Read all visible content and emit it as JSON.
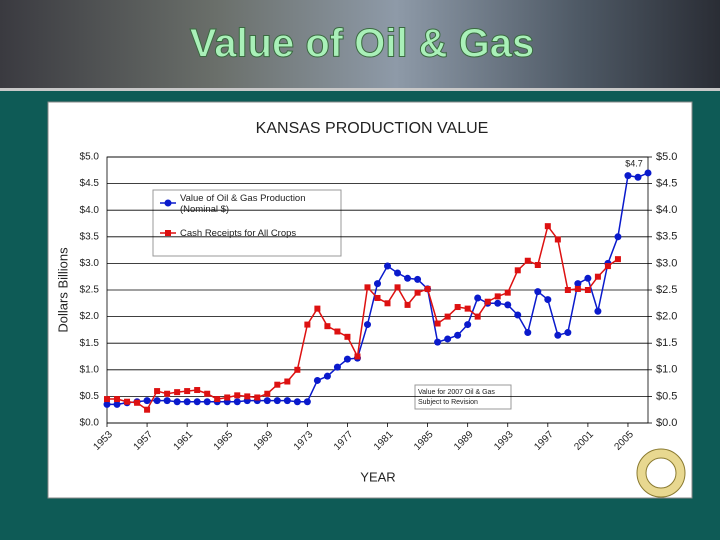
{
  "slide": {
    "title": "Value of Oil & Gas"
  },
  "chart_data": {
    "type": "line",
    "title": "KANSAS PRODUCTION VALUE",
    "y_label": "Dollars Billions",
    "x_label": "YEAR",
    "x": [
      1953,
      1954,
      1955,
      1956,
      1957,
      1958,
      1959,
      1960,
      1961,
      1962,
      1963,
      1964,
      1965,
      1966,
      1967,
      1968,
      1969,
      1970,
      1971,
      1972,
      1973,
      1974,
      1975,
      1976,
      1977,
      1978,
      1979,
      1980,
      1981,
      1982,
      1983,
      1984,
      1985,
      1986,
      1987,
      1988,
      1989,
      1990,
      1991,
      1992,
      1993,
      1994,
      1995,
      1996,
      1997,
      1998,
      1999,
      2000,
      2001,
      2002,
      2003,
      2004,
      2005,
      2006,
      2007
    ],
    "series": [
      {
        "name": "Value of Oil & Gas Production (Nominal $)",
        "color": "#0a1acc",
        "marker": "circle",
        "values": [
          0.35,
          0.35,
          0.38,
          0.4,
          0.42,
          0.42,
          0.42,
          0.4,
          0.4,
          0.4,
          0.4,
          0.4,
          0.4,
          0.4,
          0.42,
          0.42,
          0.42,
          0.42,
          0.42,
          0.4,
          0.4,
          0.8,
          0.88,
          1.05,
          1.2,
          1.22,
          1.85,
          2.62,
          2.95,
          2.82,
          2.72,
          2.7,
          2.52,
          1.52,
          1.58,
          1.65,
          1.85,
          2.35,
          2.25,
          2.25,
          2.22,
          2.03,
          1.7,
          2.47,
          2.32,
          1.65,
          1.7,
          2.62,
          2.72,
          2.1,
          3.0,
          3.5,
          4.65,
          4.62,
          4.7
        ]
      },
      {
        "name": "Cash Receipts for All Crops",
        "color": "#dd1111",
        "marker": "square",
        "values": [
          0.45,
          0.45,
          0.4,
          0.38,
          0.25,
          0.6,
          0.55,
          0.58,
          0.6,
          0.62,
          0.55,
          0.45,
          0.48,
          0.52,
          0.5,
          0.48,
          0.55,
          0.72,
          0.78,
          1.0,
          1.85,
          2.15,
          1.82,
          1.72,
          1.62,
          1.25,
          2.55,
          2.35,
          2.25,
          2.55,
          2.22,
          2.45,
          2.52,
          1.87,
          2.0,
          2.18,
          2.15,
          2.0,
          2.28,
          2.38,
          2.45,
          2.87,
          3.05,
          2.97,
          3.7,
          3.45,
          2.5,
          2.52,
          2.5,
          2.75,
          2.95,
          3.08,
          null,
          null,
          null
        ]
      }
    ],
    "xlim": [
      1953,
      2007
    ],
    "xticks": [
      1953,
      1957,
      1961,
      1965,
      1969,
      1973,
      1977,
      1981,
      1985,
      1989,
      1993,
      1997,
      2001,
      2005
    ],
    "ylim": [
      0,
      5
    ],
    "yticks": [
      {
        "value": 0,
        "label": "$0.0"
      },
      {
        "value": 0.5,
        "label": "$0.5"
      },
      {
        "value": 1,
        "label": "$1.0"
      },
      {
        "value": 1.5,
        "label": "$1.5"
      },
      {
        "value": 2,
        "label": "$2.0"
      },
      {
        "value": 2.5,
        "label": "$2.5"
      },
      {
        "value": 3,
        "label": "$3.0"
      },
      {
        "value": 3.5,
        "label": "$3.5"
      },
      {
        "value": 4,
        "label": "$4.0"
      },
      {
        "value": 4.5,
        "label": "$4.5"
      },
      {
        "value": 5,
        "label": "$5.0"
      }
    ],
    "y2lim": [
      0,
      5
    ],
    "y2ticks": [
      {
        "value": 0,
        "label": "$0.0"
      },
      {
        "value": 0.5,
        "label": "$0.5"
      },
      {
        "value": 1,
        "label": "$1.0"
      },
      {
        "value": 1.5,
        "label": "$1.5"
      },
      {
        "value": 2,
        "label": "$2.0"
      },
      {
        "value": 2.5,
        "label": "$2.5"
      },
      {
        "value": 3,
        "label": "$3.0"
      },
      {
        "value": 3.5,
        "label": "$3.5"
      },
      {
        "value": 4,
        "label": "$4.0"
      },
      {
        "value": 4.5,
        "label": "$4.5"
      },
      {
        "value": 5,
        "label": "$5.0"
      }
    ],
    "grid": true,
    "legend": "upper left",
    "annotations": [
      "$4.7",
      "Value for 2007 Oil & Gas",
      "Subject to Revision"
    ]
  }
}
